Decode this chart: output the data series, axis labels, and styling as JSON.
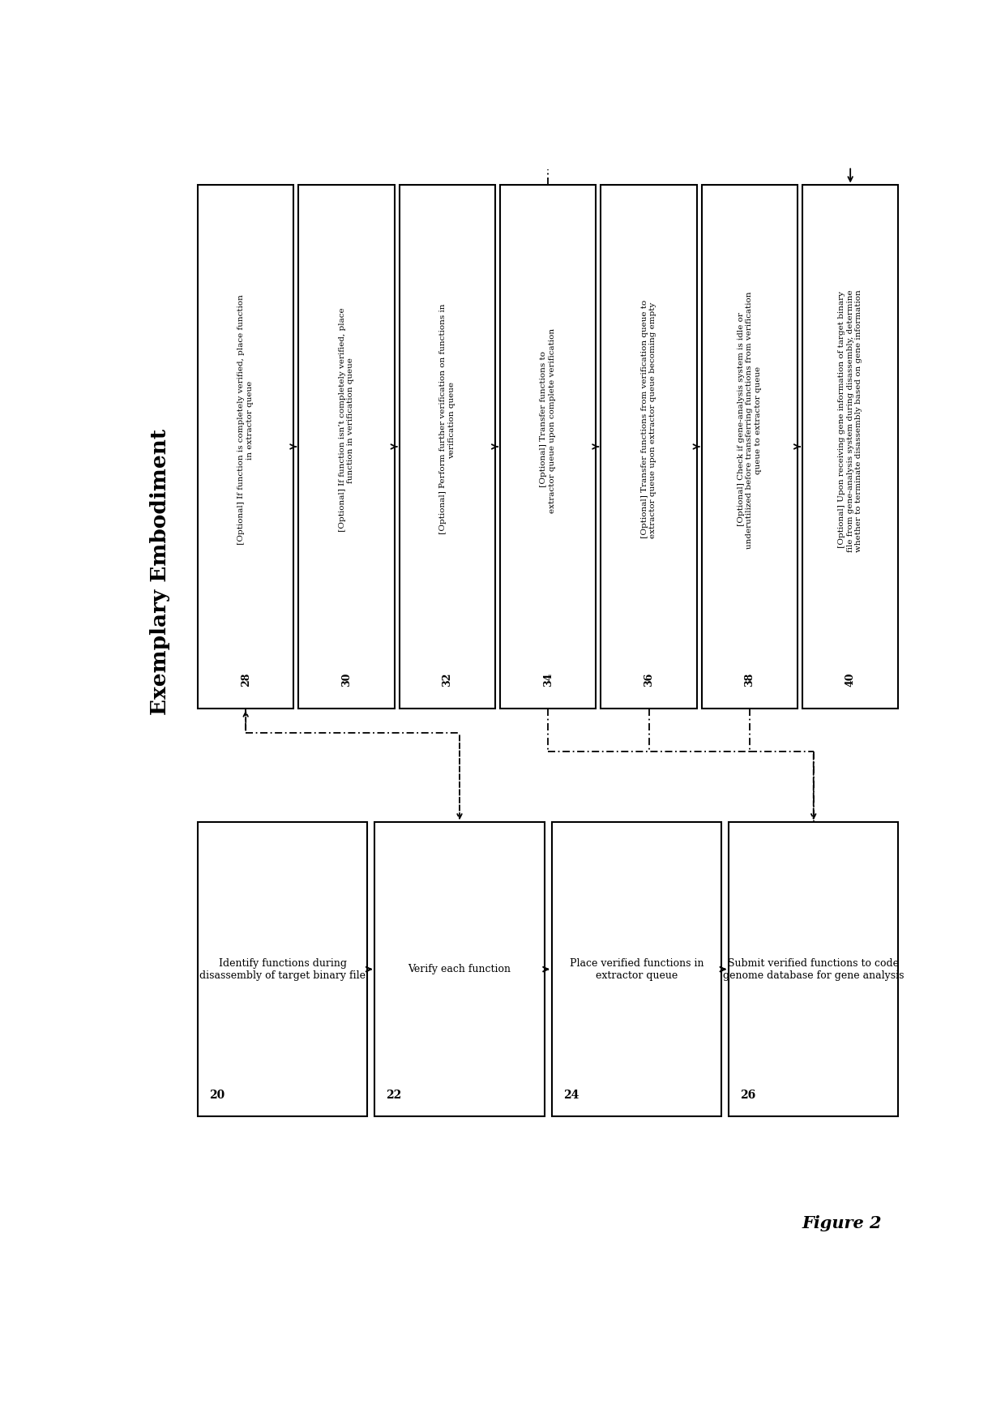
{
  "title": "Exemplary Embodiment",
  "figure_label": "Figure 2",
  "bg": "#ffffff",
  "top_boxes": [
    {
      "id": "28",
      "bold_text": "28",
      "body_text": " [Optional] If function is completely verified, place function\nin extractor queue",
      "col": 0
    },
    {
      "id": "30",
      "bold_text": "30",
      "body_text": " [Optional] If function isn’t completely verified, place\nfunction in verification queue",
      "col": 1
    },
    {
      "id": "32",
      "bold_text": "32",
      "body_text": " [Optional] Perform further verification on functions in\nverification queue",
      "col": 2
    },
    {
      "id": "34",
      "bold_text": "34",
      "body_text": " [Optional] Transfer functions to\nextractor queue upon complete verification",
      "col": 3
    },
    {
      "id": "36",
      "bold_text": "36",
      "body_text": " [Optional] Transfer functions from verification queue to\nextractor queue upon extractor queue becoming empty",
      "col": 4
    },
    {
      "id": "38",
      "bold_text": "38",
      "body_text": " [Optional] Check if gene-analysis system is idle or\nunderutilized before transferring functions from verification\nqueue to extractor queue",
      "col": 5
    },
    {
      "id": "40",
      "bold_text": "40",
      "body_text": " [Optional] Upon receiving gene information of target binary\nfile from gene-analysis system during disassembly, determine\nwhether to terminate disassembly based on gene information",
      "col": 6
    }
  ],
  "bottom_boxes": [
    {
      "id": "20",
      "bold_text": "20",
      "body_text": " Identify functions during\ndisassembly of target binary file",
      "col": 0
    },
    {
      "id": "22",
      "bold_text": "22",
      "body_text": " Verify each function",
      "col": 1
    },
    {
      "id": "24",
      "bold_text": "24",
      "body_text": " Place verified functions in\nextractor queue",
      "col": 2
    },
    {
      "id": "26",
      "bold_text": "26",
      "body_text": " Submit verified functions to code\ngenome database for gene analysis",
      "col": 3
    }
  ]
}
